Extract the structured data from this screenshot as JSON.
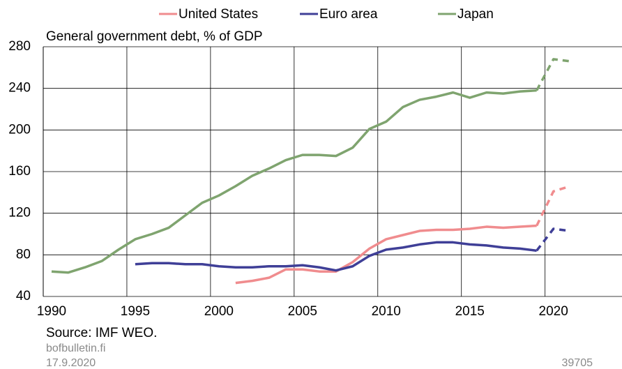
{
  "chart_data": {
    "type": "line",
    "subtitle": "General government debt, % of GDP",
    "source": "Source: IMF WEO.",
    "site": "bofbulletin.fi",
    "date": "17.9.2020",
    "chart_id": "39705",
    "xlim": [
      1989.5,
      2024.1
    ],
    "xticks": [
      1990,
      1995,
      2000,
      2005,
      2010,
      2015,
      2020
    ],
    "xgrid": [
      1994.5,
      1999.5,
      2004.5,
      2009.5,
      2014.5,
      2019.5
    ],
    "ylim": [
      40,
      280
    ],
    "yticks": [
      40,
      80,
      120,
      160,
      200,
      240,
      280
    ],
    "grid": true,
    "dashed_from": 2019,
    "series": [
      {
        "name": "United States",
        "color": "#f08c8e",
        "x": [
          2001,
          2002,
          2003,
          2004,
          2005,
          2006,
          2007,
          2008,
          2009,
          2010,
          2011,
          2012,
          2013,
          2014,
          2015,
          2016,
          2017,
          2018,
          2019,
          2020,
          2021
        ],
        "values": [
          53,
          55,
          58,
          66,
          66,
          64,
          64,
          73,
          86,
          95,
          99,
          103,
          104,
          104,
          105,
          107,
          106,
          107,
          108,
          141,
          146
        ]
      },
      {
        "name": "Euro area",
        "color": "#3f3f97",
        "x": [
          1995,
          1996,
          1997,
          1998,
          1999,
          2000,
          2001,
          2002,
          2003,
          2004,
          2005,
          2006,
          2007,
          2008,
          2009,
          2010,
          2011,
          2012,
          2013,
          2014,
          2015,
          2016,
          2017,
          2018,
          2019,
          2020,
          2021
        ],
        "values": [
          71,
          72,
          72,
          71,
          71,
          69,
          68,
          68,
          69,
          69,
          70,
          68,
          65,
          69,
          79,
          85,
          87,
          90,
          92,
          92,
          90,
          89,
          87,
          86,
          84,
          105,
          103
        ]
      },
      {
        "name": "Japan",
        "color": "#7fa46f",
        "x": [
          1990,
          1991,
          1992,
          1993,
          1994,
          1995,
          1996,
          1997,
          1998,
          1999,
          2000,
          2001,
          2002,
          2003,
          2004,
          2005,
          2006,
          2007,
          2008,
          2009,
          2010,
          2011,
          2012,
          2013,
          2014,
          2015,
          2016,
          2017,
          2018,
          2019,
          2020,
          2021
        ],
        "values": [
          64,
          63,
          68,
          74,
          85,
          95,
          100,
          106,
          118,
          130,
          137,
          146,
          156,
          163,
          171,
          176,
          176,
          175,
          183,
          201,
          208,
          222,
          229,
          232,
          236,
          231,
          236,
          235,
          237,
          238,
          268,
          266
        ]
      }
    ]
  }
}
